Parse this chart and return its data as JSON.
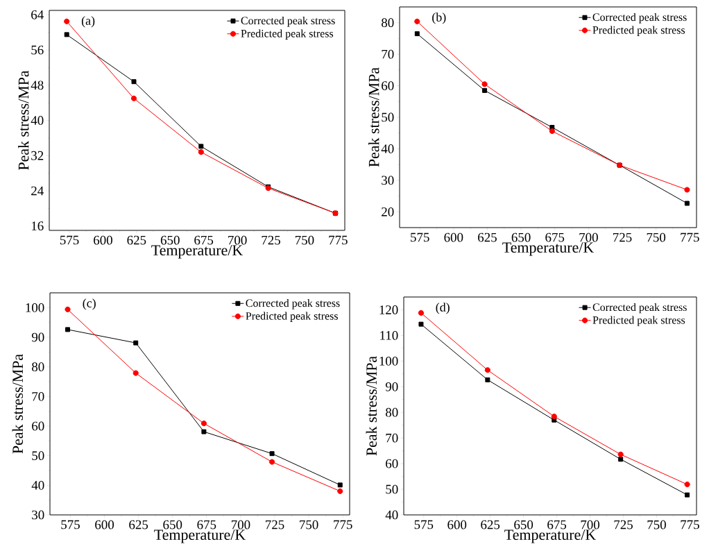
{
  "chart_data": [
    {
      "type": "line",
      "annotations": [
        "(a)"
      ],
      "xlabel": "Temperature/K",
      "ylabel": "Peak stress/MPa",
      "x": [
        573,
        623,
        673,
        723,
        773
      ],
      "xlim": [
        560,
        780
      ],
      "ylim": [
        15,
        65
      ],
      "xticks": [
        575,
        600,
        625,
        650,
        675,
        700,
        725,
        750,
        775
      ],
      "yticks": [
        16,
        24,
        32,
        40,
        48,
        56,
        64
      ],
      "legend": "top right",
      "series": [
        {
          "name": "Corrected peak stress",
          "color": "#000000",
          "marker": "square",
          "values": [
            59.5,
            48.8,
            34.1,
            24.9,
            18.9
          ]
        },
        {
          "name": "Predicted peak stress",
          "color": "#ff0000",
          "marker": "circle",
          "values": [
            62.5,
            45.0,
            32.8,
            24.6,
            18.9
          ]
        }
      ]
    },
    {
      "type": "line",
      "annotations": [
        "(b)"
      ],
      "xlabel": "Temperature/K",
      "ylabel": "Peak stress/MPa",
      "x": [
        573,
        623,
        673,
        723,
        773
      ],
      "xlim": [
        560,
        780
      ],
      "ylim": [
        15,
        85
      ],
      "xticks": [
        575,
        600,
        625,
        650,
        675,
        700,
        725,
        750,
        775
      ],
      "yticks": [
        20,
        30,
        40,
        50,
        60,
        70,
        80
      ],
      "legend": "top right",
      "series": [
        {
          "name": "Corrected peak stress",
          "color": "#000000",
          "marker": "square",
          "values": [
            76.5,
            58.5,
            46.8,
            34.8,
            22.7
          ]
        },
        {
          "name": "Predicted peak stress",
          "color": "#ff0000",
          "marker": "circle",
          "values": [
            80.4,
            60.5,
            45.6,
            34.8,
            27.0
          ]
        }
      ]
    },
    {
      "type": "line",
      "annotations": [
        "(c)"
      ],
      "xlabel": "Temperature/K",
      "ylabel": "Peak stress/MPa",
      "x": [
        573,
        623,
        673,
        723,
        773
      ],
      "xlim": [
        560,
        780
      ],
      "ylim": [
        30,
        105
      ],
      "xticks": [
        575,
        600,
        625,
        650,
        675,
        700,
        725,
        750,
        775
      ],
      "yticks": [
        30,
        40,
        50,
        60,
        70,
        80,
        90,
        100
      ],
      "legend": "top right",
      "series": [
        {
          "name": "Corrected peak stress",
          "color": "#000000",
          "marker": "square",
          "values": [
            92.6,
            88.1,
            58.1,
            50.7,
            40.1
          ]
        },
        {
          "name": "Predicted peak stress",
          "color": "#ff0000",
          "marker": "circle",
          "values": [
            99.4,
            77.9,
            60.9,
            47.9,
            38.0
          ]
        }
      ]
    },
    {
      "type": "line",
      "annotations": [
        "(d)"
      ],
      "xlabel": "Temperature/K",
      "ylabel": "Peak stress/MPa",
      "x": [
        573,
        623,
        673,
        723,
        773
      ],
      "xlim": [
        560,
        780
      ],
      "ylim": [
        40,
        125
      ],
      "xticks": [
        575,
        600,
        625,
        650,
        675,
        700,
        725,
        750,
        775
      ],
      "yticks": [
        40,
        50,
        60,
        70,
        80,
        90,
        100,
        110,
        120
      ],
      "legend": "top right",
      "series": [
        {
          "name": "Corrected peak stress",
          "color": "#000000",
          "marker": "square",
          "values": [
            114.4,
            92.7,
            77.0,
            61.7,
            47.8
          ]
        },
        {
          "name": "Predicted peak stress",
          "color": "#ff0000",
          "marker": "circle",
          "values": [
            118.8,
            96.5,
            78.4,
            63.6,
            51.9
          ]
        }
      ]
    }
  ]
}
